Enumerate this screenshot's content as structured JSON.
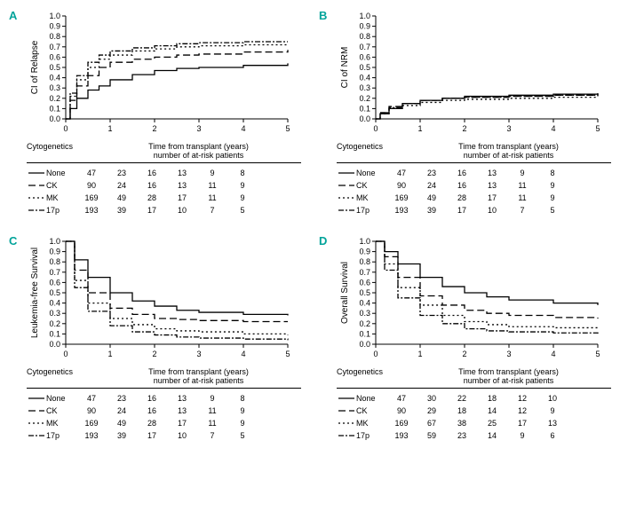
{
  "colors": {
    "accent": "#00a39a",
    "line": "#000000",
    "bg": "#ffffff"
  },
  "axis": {
    "xlim": [
      0,
      5
    ],
    "xticks": [
      0,
      1,
      2,
      3,
      4,
      5
    ],
    "ylim": [
      0,
      1
    ],
    "yticks": [
      0.0,
      0.1,
      0.2,
      0.3,
      0.4,
      0.5,
      0.6,
      0.7,
      0.8,
      0.9,
      1.0
    ],
    "xlabel_line1": "Time from transplant (years)",
    "xlabel_line2": "number of at-risk patients"
  },
  "groups": [
    {
      "key": "None",
      "label": "None",
      "dash": "",
      "n0": 47
    },
    {
      "key": "CK",
      "label": "CK",
      "dash": "8 4",
      "n0": 90
    },
    {
      "key": "MK",
      "label": "MK",
      "dash": "2 3",
      "n0": 169
    },
    {
      "key": "17p",
      "label": "17p",
      "dash": "6 2 2 2",
      "n0": 193
    }
  ],
  "panels": {
    "A": {
      "label": "A",
      "ylabel": "CI of Relapse",
      "series": {
        "None": [
          [
            0,
            0.0
          ],
          [
            0.1,
            0.1
          ],
          [
            0.25,
            0.2
          ],
          [
            0.5,
            0.28
          ],
          [
            0.75,
            0.32
          ],
          [
            1,
            0.38
          ],
          [
            1.5,
            0.43
          ],
          [
            2,
            0.47
          ],
          [
            2.5,
            0.49
          ],
          [
            3,
            0.5
          ],
          [
            4,
            0.52
          ],
          [
            5,
            0.54
          ]
        ],
        "CK": [
          [
            0,
            0.0
          ],
          [
            0.1,
            0.18
          ],
          [
            0.25,
            0.32
          ],
          [
            0.5,
            0.42
          ],
          [
            0.75,
            0.5
          ],
          [
            1,
            0.55
          ],
          [
            1.5,
            0.58
          ],
          [
            2,
            0.6
          ],
          [
            2.5,
            0.62
          ],
          [
            3,
            0.63
          ],
          [
            4,
            0.65
          ],
          [
            5,
            0.67
          ]
        ],
        "MK": [
          [
            0,
            0.0
          ],
          [
            0.1,
            0.22
          ],
          [
            0.25,
            0.38
          ],
          [
            0.5,
            0.5
          ],
          [
            0.75,
            0.58
          ],
          [
            1,
            0.62
          ],
          [
            1.5,
            0.66
          ],
          [
            2,
            0.68
          ],
          [
            2.5,
            0.7
          ],
          [
            3,
            0.71
          ],
          [
            4,
            0.72
          ],
          [
            5,
            0.73
          ]
        ],
        "17p": [
          [
            0,
            0.0
          ],
          [
            0.1,
            0.25
          ],
          [
            0.25,
            0.42
          ],
          [
            0.5,
            0.55
          ],
          [
            0.75,
            0.62
          ],
          [
            1,
            0.66
          ],
          [
            1.5,
            0.69
          ],
          [
            2,
            0.71
          ],
          [
            2.5,
            0.73
          ],
          [
            3,
            0.74
          ],
          [
            4,
            0.75
          ],
          [
            5,
            0.75
          ]
        ]
      },
      "risk": {
        "None": [
          47,
          23,
          16,
          13,
          9,
          8
        ],
        "CK": [
          90,
          24,
          16,
          13,
          11,
          9
        ],
        "MK": [
          169,
          49,
          28,
          17,
          11,
          9
        ],
        "17p": [
          193,
          39,
          17,
          10,
          7,
          5
        ]
      }
    },
    "B": {
      "label": "B",
      "ylabel": "CI of NRM",
      "series": {
        "None": [
          [
            0,
            0.0
          ],
          [
            0.1,
            0.05
          ],
          [
            0.3,
            0.1
          ],
          [
            0.6,
            0.15
          ],
          [
            1,
            0.18
          ],
          [
            1.5,
            0.2
          ],
          [
            2,
            0.22
          ],
          [
            3,
            0.23
          ],
          [
            4,
            0.24
          ],
          [
            5,
            0.25
          ]
        ],
        "CK": [
          [
            0,
            0.0
          ],
          [
            0.1,
            0.06
          ],
          [
            0.3,
            0.12
          ],
          [
            0.6,
            0.15
          ],
          [
            1,
            0.18
          ],
          [
            1.5,
            0.2
          ],
          [
            2,
            0.21
          ],
          [
            3,
            0.22
          ],
          [
            4,
            0.23
          ],
          [
            5,
            0.24
          ]
        ],
        "MK": [
          [
            0,
            0.0
          ],
          [
            0.1,
            0.05
          ],
          [
            0.3,
            0.1
          ],
          [
            0.6,
            0.13
          ],
          [
            1,
            0.16
          ],
          [
            1.5,
            0.18
          ],
          [
            2,
            0.19
          ],
          [
            3,
            0.2
          ],
          [
            4,
            0.21
          ],
          [
            5,
            0.22
          ]
        ],
        "17p": [
          [
            0,
            0.0
          ],
          [
            0.1,
            0.06
          ],
          [
            0.3,
            0.11
          ],
          [
            0.6,
            0.15
          ],
          [
            1,
            0.18
          ],
          [
            1.5,
            0.2
          ],
          [
            2,
            0.21
          ],
          [
            3,
            0.22
          ],
          [
            4,
            0.23
          ],
          [
            5,
            0.24
          ]
        ]
      },
      "risk": {
        "None": [
          47,
          23,
          16,
          13,
          9,
          8
        ],
        "CK": [
          90,
          24,
          16,
          13,
          11,
          9
        ],
        "MK": [
          169,
          49,
          28,
          17,
          11,
          9
        ],
        "17p": [
          193,
          39,
          17,
          10,
          7,
          5
        ]
      }
    },
    "C": {
      "label": "C",
      "ylabel": "Leukemia-free Survival",
      "series": {
        "None": [
          [
            0,
            1.0
          ],
          [
            0.2,
            0.82
          ],
          [
            0.5,
            0.65
          ],
          [
            1,
            0.5
          ],
          [
            1.5,
            0.42
          ],
          [
            2,
            0.37
          ],
          [
            2.5,
            0.33
          ],
          [
            3,
            0.31
          ],
          [
            4,
            0.29
          ],
          [
            5,
            0.28
          ]
        ],
        "CK": [
          [
            0,
            1.0
          ],
          [
            0.2,
            0.72
          ],
          [
            0.5,
            0.5
          ],
          [
            1,
            0.35
          ],
          [
            1.5,
            0.29
          ],
          [
            2,
            0.25
          ],
          [
            2.5,
            0.24
          ],
          [
            3,
            0.23
          ],
          [
            4,
            0.22
          ],
          [
            5,
            0.22
          ]
        ],
        "MK": [
          [
            0,
            1.0
          ],
          [
            0.2,
            0.62
          ],
          [
            0.5,
            0.4
          ],
          [
            1,
            0.25
          ],
          [
            1.5,
            0.19
          ],
          [
            2,
            0.15
          ],
          [
            2.5,
            0.13
          ],
          [
            3,
            0.12
          ],
          [
            4,
            0.1
          ],
          [
            5,
            0.09
          ]
        ],
        "17p": [
          [
            0,
            1.0
          ],
          [
            0.2,
            0.55
          ],
          [
            0.5,
            0.32
          ],
          [
            1,
            0.18
          ],
          [
            1.5,
            0.12
          ],
          [
            2,
            0.09
          ],
          [
            2.5,
            0.07
          ],
          [
            3,
            0.06
          ],
          [
            4,
            0.05
          ],
          [
            5,
            0.04
          ]
        ]
      },
      "risk": {
        "None": [
          47,
          23,
          16,
          13,
          9,
          8
        ],
        "CK": [
          90,
          24,
          16,
          13,
          11,
          9
        ],
        "MK": [
          169,
          49,
          28,
          17,
          11,
          9
        ],
        "17p": [
          193,
          39,
          17,
          10,
          7,
          5
        ]
      }
    },
    "D": {
      "label": "D",
      "ylabel": "Overall Survival",
      "series": {
        "None": [
          [
            0,
            1.0
          ],
          [
            0.2,
            0.9
          ],
          [
            0.5,
            0.78
          ],
          [
            1,
            0.65
          ],
          [
            1.5,
            0.56
          ],
          [
            2,
            0.5
          ],
          [
            2.5,
            0.46
          ],
          [
            3,
            0.43
          ],
          [
            4,
            0.4
          ],
          [
            5,
            0.38
          ]
        ],
        "CK": [
          [
            0,
            1.0
          ],
          [
            0.2,
            0.85
          ],
          [
            0.5,
            0.65
          ],
          [
            1,
            0.47
          ],
          [
            1.5,
            0.38
          ],
          [
            2,
            0.33
          ],
          [
            2.5,
            0.3
          ],
          [
            3,
            0.28
          ],
          [
            4,
            0.26
          ],
          [
            5,
            0.25
          ]
        ],
        "MK": [
          [
            0,
            1.0
          ],
          [
            0.2,
            0.78
          ],
          [
            0.5,
            0.55
          ],
          [
            1,
            0.38
          ],
          [
            1.5,
            0.28
          ],
          [
            2,
            0.22
          ],
          [
            2.5,
            0.19
          ],
          [
            3,
            0.17
          ],
          [
            4,
            0.16
          ],
          [
            5,
            0.15
          ]
        ],
        "17p": [
          [
            0,
            1.0
          ],
          [
            0.2,
            0.72
          ],
          [
            0.5,
            0.45
          ],
          [
            1,
            0.28
          ],
          [
            1.5,
            0.2
          ],
          [
            2,
            0.15
          ],
          [
            2.5,
            0.13
          ],
          [
            3,
            0.12
          ],
          [
            4,
            0.11
          ],
          [
            5,
            0.1
          ]
        ]
      },
      "risk": {
        "None": [
          47,
          30,
          22,
          18,
          12,
          10
        ],
        "CK": [
          90,
          29,
          18,
          14,
          12,
          9
        ],
        "MK": [
          169,
          67,
          38,
          25,
          17,
          13
        ],
        "17p": [
          193,
          59,
          23,
          14,
          9,
          6
        ]
      }
    }
  },
  "legend_header": "Cytogenetics"
}
